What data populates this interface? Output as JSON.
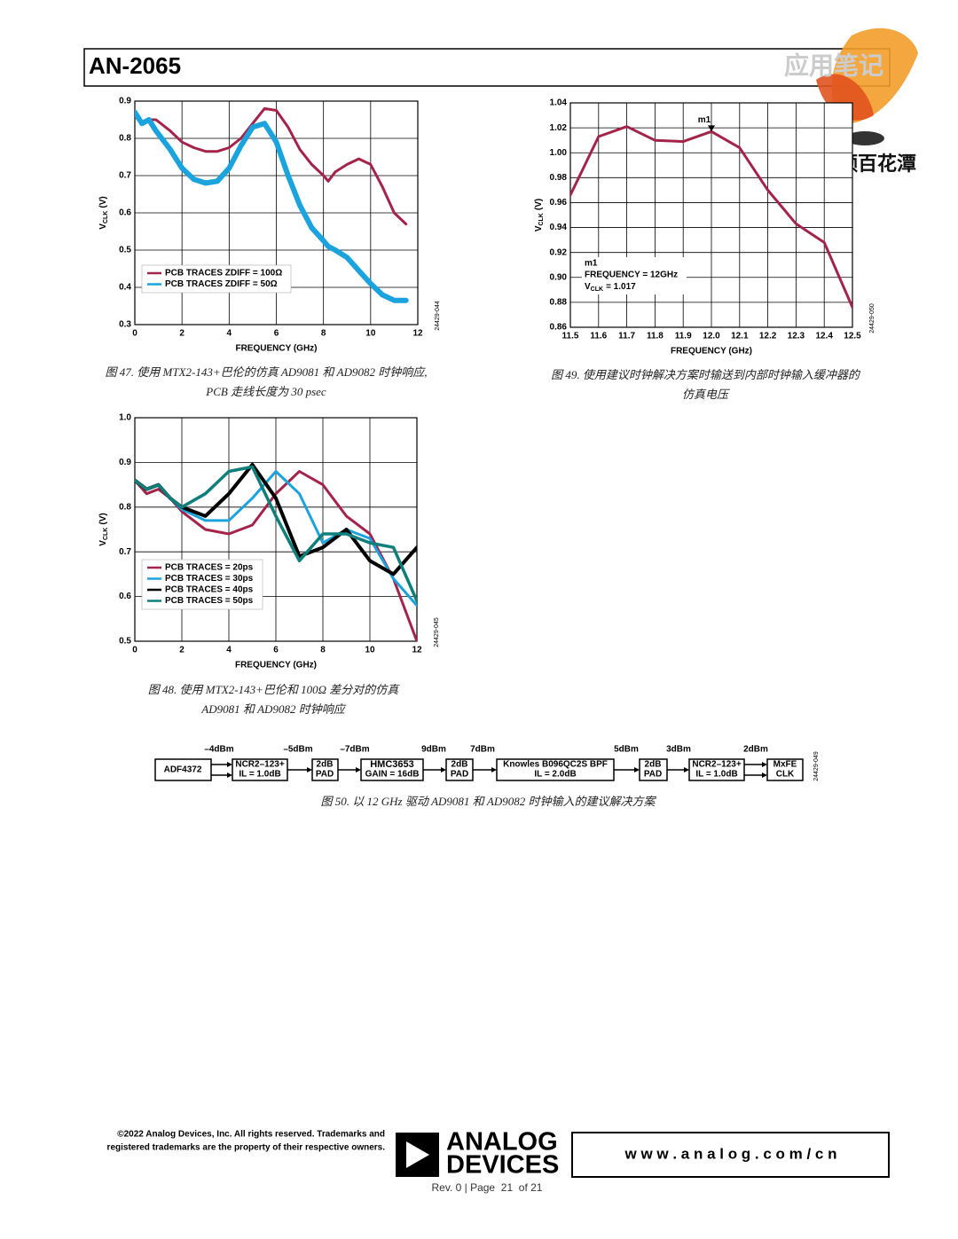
{
  "header": {
    "title": "AN-2065",
    "watermark": "应用笔记",
    "brand": "射频百花潭"
  },
  "chart_data": [
    {
      "type": "line",
      "xlabel": "FREQUENCY (GHz)",
      "ylabel": [
        "V",
        "CLK",
        "(V)"
      ],
      "code": "24429-044",
      "caption": [
        "图 47. 使用 MTX2-143+巴伦的仿真 AD9081 和 AD9082 时钟响应,",
        "PCB 走线长度为 30 psec"
      ],
      "x": [
        0,
        0.3,
        0.6,
        0.9,
        1.5,
        2,
        2.5,
        3,
        3.5,
        4,
        4.5,
        5,
        5.5,
        6,
        6.5,
        7,
        7.5,
        8,
        8.2,
        8.5,
        9,
        9.5,
        10,
        10.5,
        11,
        11.5
      ],
      "series": [
        {
          "name": "PCB TRACES ZDIFF = 100Ω",
          "color": "#a4234a",
          "width": 3,
          "values": [
            0.86,
            0.84,
            0.85,
            0.85,
            0.82,
            0.79,
            0.775,
            0.765,
            0.765,
            0.775,
            0.8,
            0.84,
            0.88,
            0.875,
            0.83,
            0.77,
            0.73,
            0.7,
            0.685,
            0.71,
            0.73,
            0.745,
            0.73,
            0.67,
            0.6,
            0.57
          ]
        },
        {
          "name": "PCB TRACES ZDIFF = 50Ω",
          "color": "#1ba3dd",
          "width": 6,
          "values": [
            0.87,
            0.84,
            0.85,
            0.82,
            0.77,
            0.72,
            0.69,
            0.68,
            0.685,
            0.72,
            0.78,
            0.83,
            0.84,
            0.79,
            0.7,
            0.62,
            0.56,
            0.525,
            0.51,
            0.5,
            0.48,
            0.445,
            0.41,
            0.38,
            0.365,
            0.365
          ]
        }
      ],
      "xlim": [
        0,
        12
      ],
      "xticks": [
        0,
        2,
        4,
        6,
        8,
        10,
        12
      ],
      "ylim": [
        0.3,
        0.9
      ],
      "yticks": [
        0.3,
        0.4,
        0.5,
        0.6,
        0.7,
        0.8,
        0.9
      ],
      "grid": true,
      "legend": "lower left"
    },
    {
      "type": "line",
      "xlabel": "FREQUENCY (GHz)",
      "ylabel": [
        "V",
        "CLK",
        "(V)"
      ],
      "code": "24429-050",
      "caption": [
        "图 49. 使用建议时钟解决方案时输送到内部时钟输入缓冲器的",
        "仿真电压"
      ],
      "x": [
        11.5,
        11.6,
        11.7,
        11.8,
        11.9,
        12.0,
        12.1,
        12.2,
        12.3,
        12.4,
        12.5
      ],
      "series": [
        {
          "color": "#a4234a",
          "width": 3,
          "values": [
            0.966,
            1.013,
            1.021,
            1.01,
            1.009,
            1.017,
            1.004,
            0.97,
            0.943,
            0.928,
            0.876
          ]
        }
      ],
      "marker": {
        "label": "m1",
        "x": 12,
        "y": 1.017
      },
      "annotation": [
        "m1",
        "FREQUENCY = 12GHz",
        [
          "V",
          "CLK",
          "= 1.017"
        ]
      ],
      "xlim": [
        11.5,
        12.5
      ],
      "xticks": [
        11.5,
        11.6,
        11.7,
        11.8,
        11.9,
        {
          "value": 12,
          "label": "12.0"
        },
        12.1,
        12.2,
        12.3,
        12.4,
        12.5
      ],
      "ylim": [
        0.86,
        1.04
      ],
      "yticks": [
        0.86,
        0.88,
        {
          "value": 0.9,
          "label": "0.90"
        },
        0.92,
        0.94,
        0.96,
        0.98,
        {
          "value": 1,
          "label": "1.00"
        },
        1.02,
        1.04
      ],
      "grid": true
    },
    {
      "type": "line",
      "xlabel": "FREQUENCY (GHz)",
      "ylabel": [
        "V",
        "CLK",
        "(V)"
      ],
      "code": "24429-045",
      "caption": [
        "图 48. 使用 MTX2-143+巴伦和 100Ω 差分对的仿真",
        "AD9081 和 AD9082 时钟响应"
      ],
      "x": [
        0,
        0.5,
        1,
        1.5,
        2,
        3,
        4,
        5,
        6,
        7,
        8,
        9,
        10,
        11,
        12
      ],
      "series": [
        {
          "name": "PCB TRACES = 20ps",
          "color": "#a4234a",
          "width": 3,
          "values": [
            0.86,
            0.83,
            0.84,
            0.82,
            0.79,
            0.75,
            0.74,
            0.76,
            0.83,
            0.88,
            0.85,
            0.78,
            0.74,
            0.64,
            0.5
          ]
        },
        {
          "name": "PCB TRACES = 30ps",
          "color": "#1ba3dd",
          "width": 3,
          "values": [
            0.86,
            0.84,
            0.85,
            0.82,
            0.795,
            0.77,
            0.77,
            0.82,
            0.88,
            0.83,
            0.72,
            0.75,
            0.73,
            0.64,
            0.58
          ]
        },
        {
          "name": "PCB TRACES = 40ps",
          "color": "#000000",
          "width": 4,
          "values": [
            0.86,
            0.84,
            0.85,
            0.82,
            0.8,
            0.78,
            0.83,
            0.895,
            0.82,
            0.69,
            0.71,
            0.75,
            0.68,
            0.65,
            0.71
          ]
        },
        {
          "name": "PCB TRACES = 50ps",
          "color": "#0f7f7b",
          "width": 3.5,
          "values": [
            0.86,
            0.84,
            0.85,
            0.82,
            0.8,
            0.83,
            0.88,
            0.89,
            0.78,
            0.68,
            0.74,
            0.74,
            0.72,
            0.71,
            0.59
          ]
        }
      ],
      "xlim": [
        0,
        12
      ],
      "xticks": [
        0,
        2,
        4,
        6,
        8,
        10,
        12
      ],
      "ylim": [
        0.5,
        1.0
      ],
      "yticks": [
        0.5,
        0.6,
        0.7,
        0.8,
        0.9,
        {
          "value": 1,
          "label": "1.0"
        }
      ],
      "grid": true,
      "legend": "lower left"
    }
  ],
  "diagram": {
    "levels": [
      "–4dBm",
      "–5dBm",
      "–7dBm",
      "9dBm",
      "7dBm",
      "5dBm",
      "3dBm",
      "2dBm"
    ],
    "nodes": [
      [
        "ADF4372"
      ],
      [
        "NCR2–123+",
        "IL = 1.0dB"
      ],
      [
        "2dB",
        "PAD"
      ],
      [
        "HMC3653",
        "GAIN = 16dB"
      ],
      [
        "2dB",
        "PAD"
      ],
      [
        "Knowles B096QC2S BPF",
        "IL = 2.0dB"
      ],
      [
        "2dB",
        "PAD"
      ],
      [
        "NCR2–123+",
        "IL = 1.0dB"
      ],
      [
        "MxFE",
        "CLK"
      ]
    ],
    "code": "24429-049",
    "caption": "图 50. 以 12 GHz 驱动 AD9081 和 AD9082 时钟输入的建议解决方案"
  },
  "footer": {
    "copyright": [
      "©2022 Analog Devices, Inc. All rights reserved. Trademarks and",
      "registered trademarks are the property of their respective owners."
    ],
    "logo": [
      "ANALOG",
      "DEVICES"
    ],
    "url": "w w w . a n a l o g . c o m / c n",
    "page": "Rev. 0 | Page  21  of 21"
  }
}
